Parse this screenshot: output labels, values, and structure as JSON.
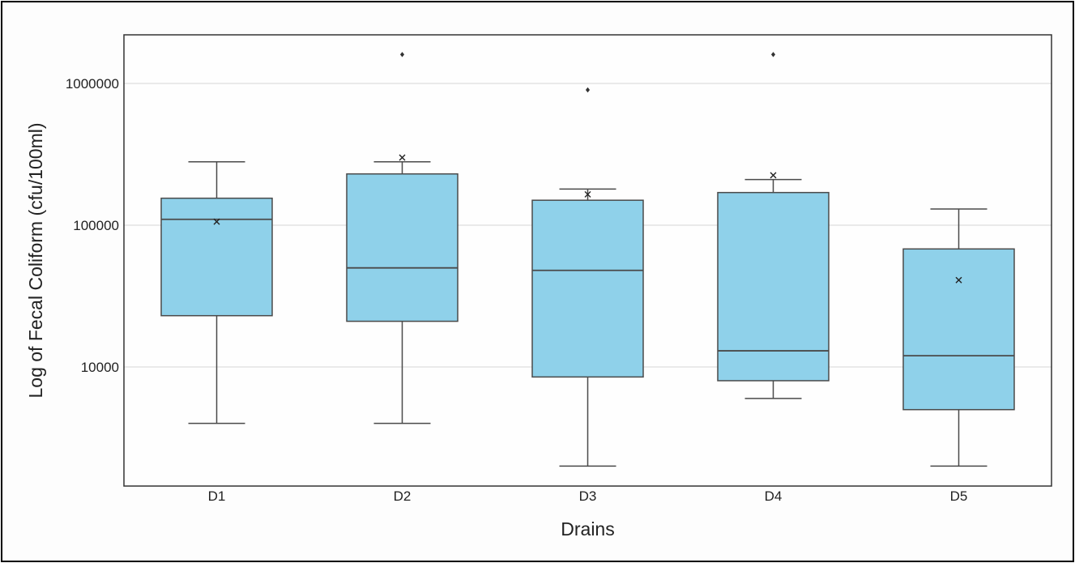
{
  "chart_data": {
    "type": "box",
    "title": "",
    "xlabel": "Drains",
    "ylabel": "Log of Fecal Coliform (cfu/100ml)",
    "yscale": "log",
    "ylim": [
      1500,
      2300000
    ],
    "yticks": [
      10000,
      100000,
      1000000
    ],
    "ytick_labels": [
      "10000",
      "100000",
      "1000000"
    ],
    "grid": "horizontal",
    "box_color": "#8fd1ea",
    "line_color": "#4a4a4a",
    "categories": [
      "D1",
      "D2",
      "D3",
      "D4",
      "D5"
    ],
    "boxes": [
      {
        "label": "D1",
        "whisker_low": 4000,
        "q1": 23000,
        "median": 110000,
        "q3": 155000,
        "whisker_high": 280000,
        "mean": 106000,
        "outliers": []
      },
      {
        "label": "D2",
        "whisker_low": 4000,
        "q1": 21000,
        "median": 50000,
        "q3": 230000,
        "whisker_high": 280000,
        "mean": 300000,
        "outliers": [
          1600000
        ]
      },
      {
        "label": "D3",
        "whisker_low": 2000,
        "q1": 8500,
        "median": 48000,
        "q3": 150000,
        "whisker_high": 180000,
        "mean": 165000,
        "outliers": [
          900000
        ]
      },
      {
        "label": "D4",
        "whisker_low": 6000,
        "q1": 8000,
        "median": 13000,
        "q3": 170000,
        "whisker_high": 210000,
        "mean": 225000,
        "outliers": [
          1600000
        ]
      },
      {
        "label": "D5",
        "whisker_low": 2000,
        "q1": 5000,
        "median": 12000,
        "q3": 68000,
        "whisker_high": 130000,
        "mean": 41000,
        "outliers": []
      }
    ]
  }
}
